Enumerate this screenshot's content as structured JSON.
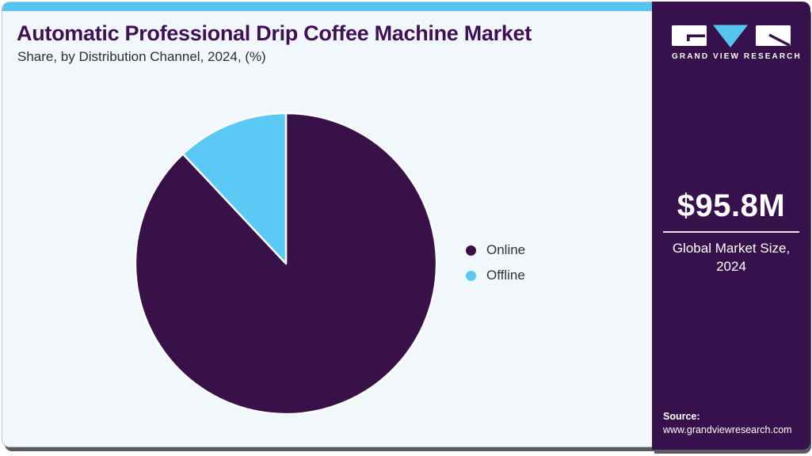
{
  "header": {
    "title": "Automatic Professional Drip Coffee Machine Market",
    "subtitle": "Share, by Distribution Channel, 2024, (%)",
    "accent_bar_color": "#55c4ef",
    "title_color": "#3f1056"
  },
  "chart_data": {
    "type": "pie",
    "title": "Automatic Professional Drip Coffee Machine Market Share, by Distribution Channel, 2024, (%)",
    "categories": [
      "Online",
      "Offline"
    ],
    "values": [
      88,
      12
    ],
    "unit": "%",
    "colors": [
      "#381149",
      "#5bc9f5"
    ],
    "start": "top",
    "direction": "clockwise",
    "slice_stroke": "#ffffff",
    "legend_position": "right",
    "data_labels": false
  },
  "legend": {
    "items": [
      {
        "label": "Online",
        "color": "#381149"
      },
      {
        "label": "Offline",
        "color": "#5bc9f5"
      }
    ]
  },
  "sidebar": {
    "background": "#36114b",
    "logo_text": "GRAND VIEW RESEARCH",
    "market_size_value": "$95.8M",
    "market_size_label": "Global Market Size, 2024",
    "source_label": "Source:",
    "source_url": "www.grandviewresearch.com"
  }
}
